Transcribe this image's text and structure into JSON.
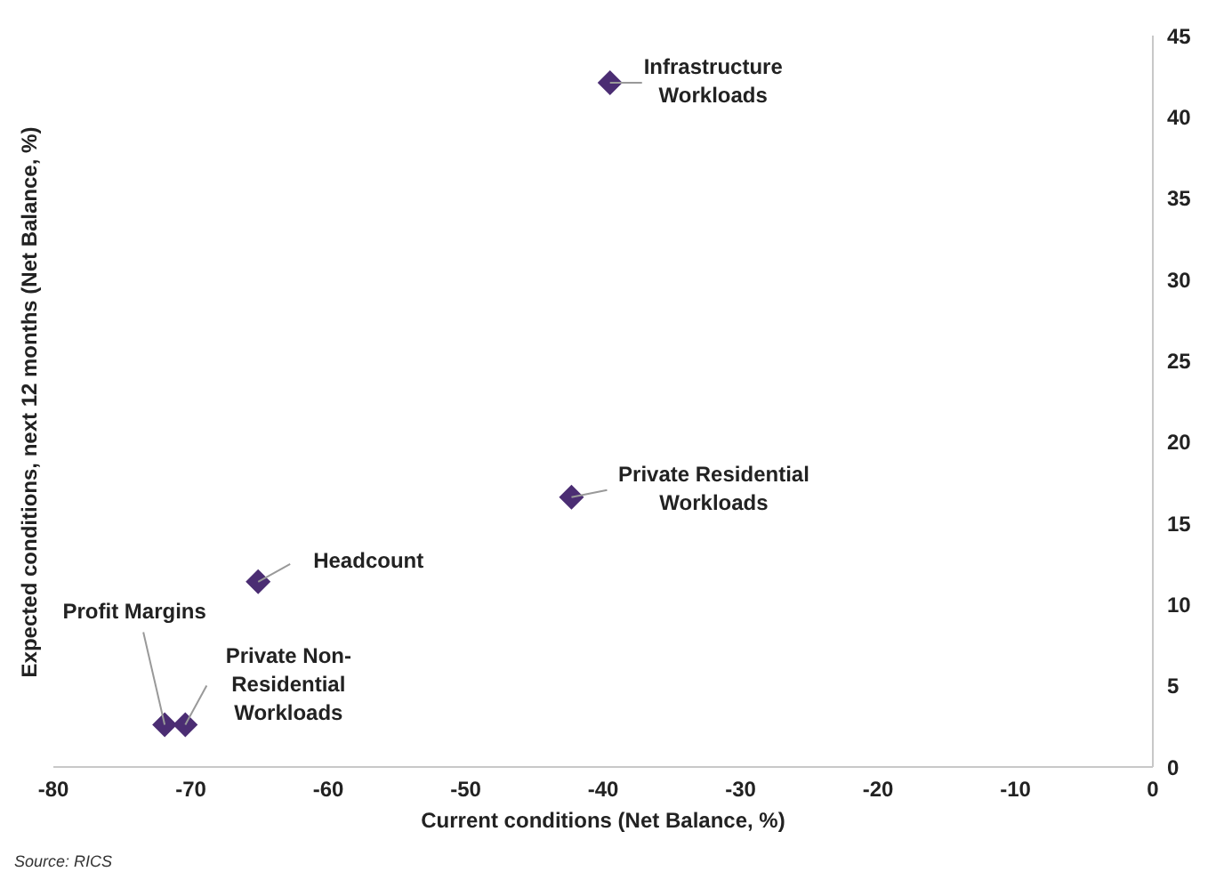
{
  "chart_data": {
    "type": "scatter",
    "xlabel": "Current conditions (Net Balance, %)",
    "ylabel": "Expected conditions, next 12 months (Net Balance, %)",
    "x": [
      -39.5,
      -42.3,
      -65.1,
      -71.9,
      -70.4
    ],
    "series": [
      {
        "color": "#4b2d73",
        "values": [
          42.1,
          16.6,
          11.4,
          2.6,
          2.6
        ]
      }
    ],
    "xlim": [
      -80,
      0
    ],
    "xticks": [
      -80,
      -70,
      -60,
      -50,
      -40,
      -30,
      -20,
      -10,
      0
    ],
    "ylim": [
      0,
      45
    ],
    "yticks": [
      0,
      5,
      10,
      15,
      20,
      25,
      30,
      35,
      40,
      45
    ],
    "marker": "diamond",
    "grid": false,
    "legend": false,
    "annotations": [
      {
        "text": "Infrastructure\nWorkloads",
        "x": -39.5,
        "y": 42.1
      },
      {
        "text": "Private Residential\nWorkloads",
        "x": -42.3,
        "y": 16.6
      },
      {
        "text": "Headcount",
        "x": -65.1,
        "y": 11.4
      },
      {
        "text": "Profit Margins",
        "x": -71.9,
        "y": 2.6
      },
      {
        "text": "Private Non-\nResidential\nWorkloads",
        "x": -70.4,
        "y": 2.6
      },
      "Source: RICS"
    ]
  }
}
